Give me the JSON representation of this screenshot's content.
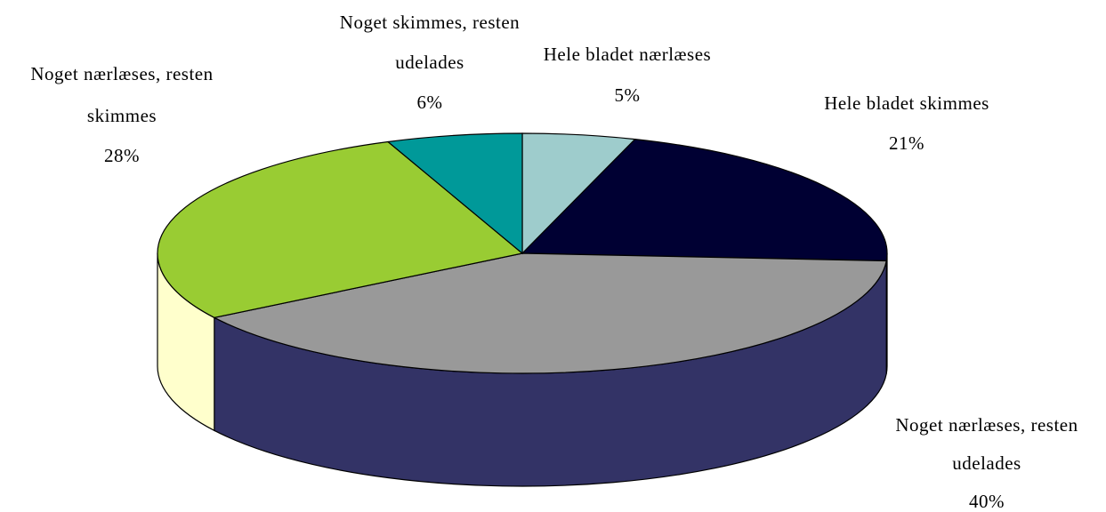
{
  "chart_data": {
    "type": "pie",
    "title": "",
    "categories": [
      "Hele bladet nærlæses",
      "Hele bladet skimmes",
      "Noget nærlæses, resten udelades",
      "Noget nærlæses, resten skimmes",
      "Noget skimmes, resten udelades"
    ],
    "values": [
      5,
      21,
      40,
      28,
      6
    ],
    "percent_labels": [
      "5%",
      "21%",
      "40%",
      "28%",
      "6%"
    ],
    "label_lines": [
      [
        "Hele bladet nærlæses"
      ],
      [
        "Hele bladet skimmes"
      ],
      [
        "Noget nærlæses, resten",
        "udelades"
      ],
      [
        "Noget nærlæses, resten",
        "skimmes"
      ],
      [
        "Noget skimmes, resten",
        "udelades"
      ]
    ],
    "colors": [
      "#9ECCCC",
      "#000033",
      "#999999",
      "#99CC33",
      "#009999"
    ],
    "side_colors": [
      "#FFFFCC",
      "#333366"
    ],
    "style": "3d",
    "legend": "none"
  }
}
